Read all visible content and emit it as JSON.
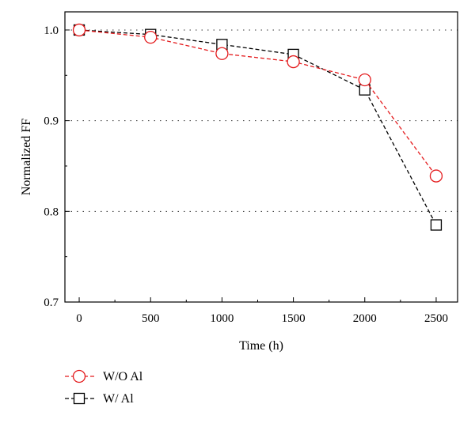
{
  "chart_data": {
    "type": "line",
    "xlabel": "Time (h)",
    "ylabel": "Normalized FF",
    "xlim": [
      -100,
      2650
    ],
    "ylim": [
      0.7,
      1.02
    ],
    "x_ticks": [
      0,
      500,
      1000,
      1500,
      2000,
      2500
    ],
    "y_ticks": [
      0.7,
      0.8,
      0.9,
      1.0
    ],
    "x_tick_labels": [
      "0",
      "500",
      "1000",
      "1500",
      "2000",
      "2500"
    ],
    "y_tick_labels": [
      "0.7",
      "0.8",
      "0.9",
      "1.0"
    ],
    "grid": "dotted horizontal at 0.8, 0.9, 1.0",
    "legend_position": "bottom-left, below plot",
    "x": [
      0,
      500,
      1000,
      1500,
      2000,
      2500
    ],
    "series": [
      {
        "name": "W/O Al",
        "values": [
          1.0,
          0.992,
          0.974,
          0.965,
          0.945,
          0.839
        ],
        "color": "#e41a1c",
        "marker": "circle",
        "line_style": "dashed"
      },
      {
        "name": "W/ Al",
        "values": [
          1.0,
          0.995,
          0.984,
          0.973,
          0.934,
          0.785
        ],
        "color": "#000000",
        "marker": "square",
        "line_style": "dashed"
      }
    ]
  }
}
